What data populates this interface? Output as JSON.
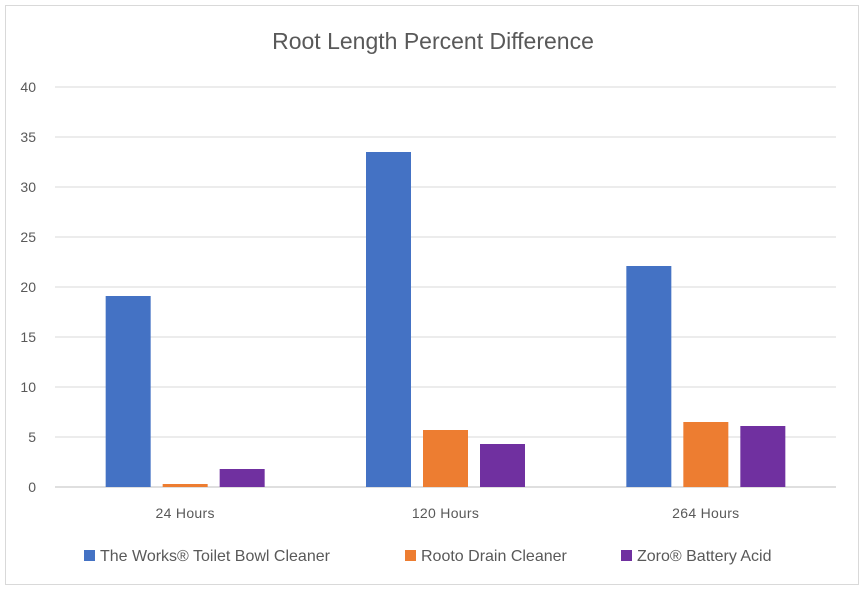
{
  "chart_data": {
    "type": "bar",
    "title": "Root Length Percent Difference",
    "xlabel": "",
    "ylabel": "",
    "categories": [
      "24 Hours",
      "120 Hours",
      "264 Hours"
    ],
    "series": [
      {
        "name": "The Works® Toilet Bowl Cleaner",
        "color": "#4472C4",
        "values": [
          19.1,
          33.5,
          22.1
        ]
      },
      {
        "name": "Rooto Drain Cleaner",
        "color": "#ED7D31",
        "values": [
          0.3,
          5.7,
          6.5
        ]
      },
      {
        "name": "Zoro® Battery Acid",
        "color": "#7030A0",
        "values": [
          1.8,
          4.3,
          6.1
        ]
      }
    ],
    "ylim": [
      0,
      40
    ],
    "yticks": [
      0,
      5,
      10,
      15,
      20,
      25,
      30,
      35,
      40
    ],
    "grid": true,
    "legend": "bottom"
  }
}
